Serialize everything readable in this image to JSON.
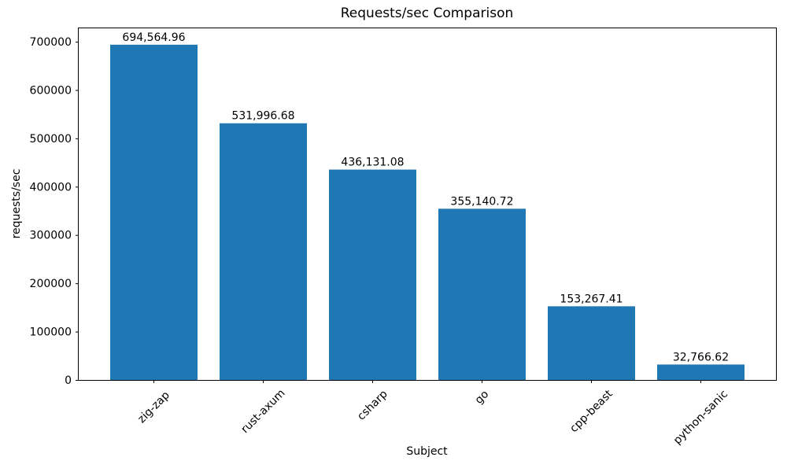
{
  "chart_data": {
    "type": "bar",
    "title": "Requests/sec Comparison",
    "xlabel": "Subject",
    "ylabel": "requests/sec",
    "categories": [
      "zig-zap",
      "rust-axum",
      "csharp",
      "go",
      "cpp-beast",
      "python-sanic"
    ],
    "values": [
      694564.96,
      531996.68,
      436131.08,
      355140.72,
      153267.41,
      32766.62
    ],
    "value_labels": [
      "694,564.96",
      "531,996.68",
      "436,131.08",
      "355,140.72",
      "153,267.41",
      "32,766.62"
    ],
    "yticks": [
      0,
      100000,
      200000,
      300000,
      400000,
      500000,
      600000,
      700000
    ],
    "ytick_labels": [
      "0",
      "100000",
      "200000",
      "300000",
      "400000",
      "500000",
      "600000",
      "700000"
    ],
    "ylim": [
      0,
      729293
    ],
    "bar_color": "#1f77b4",
    "axis_color": "#000000",
    "grid": false,
    "legend": null,
    "xtick_rotation_deg": 45
  }
}
